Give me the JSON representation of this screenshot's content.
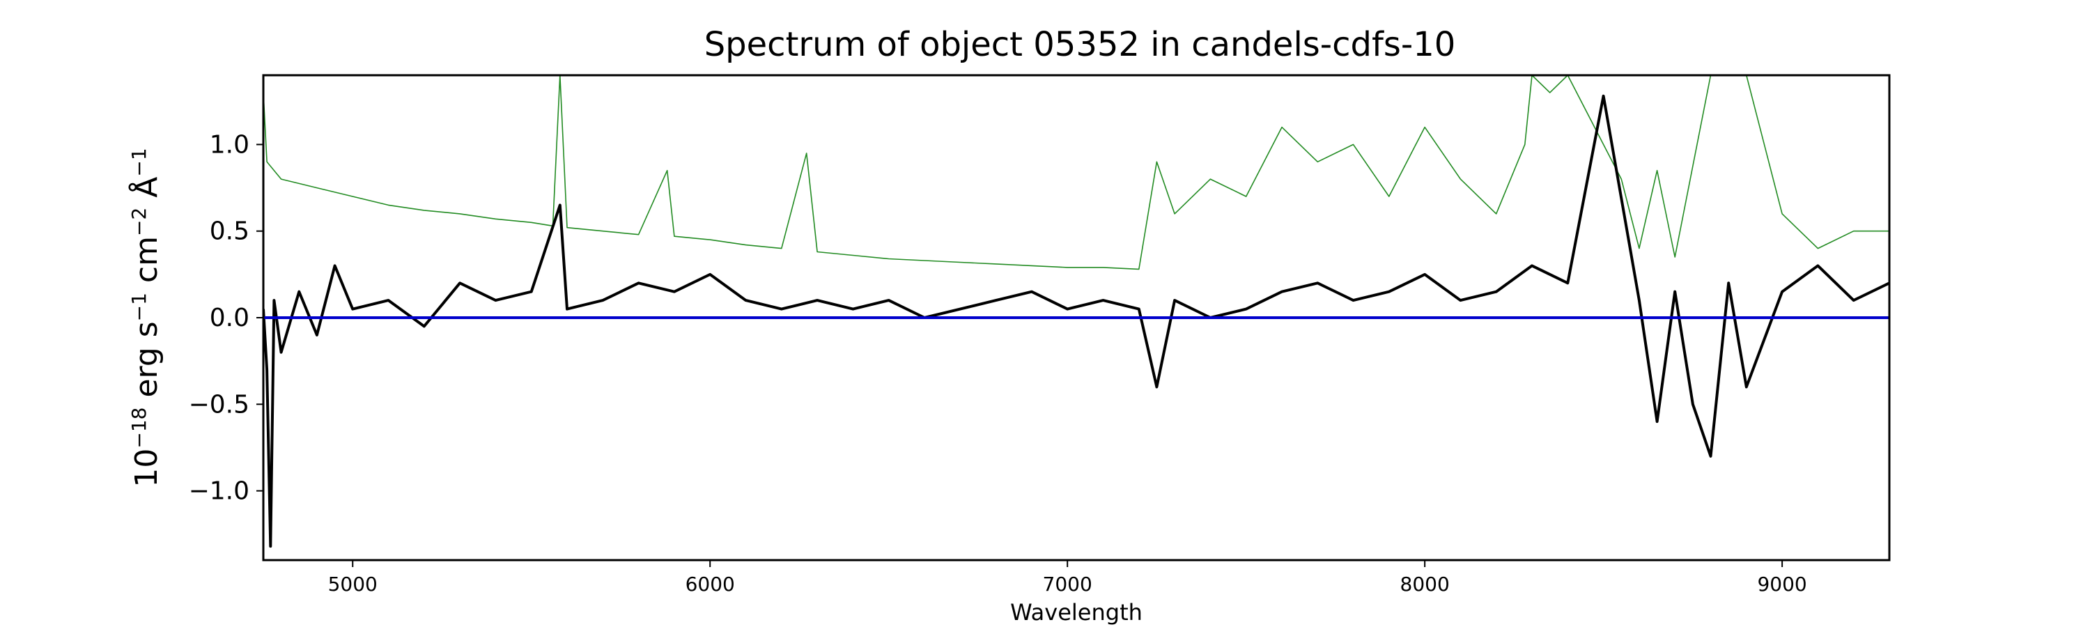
{
  "chart_data": {
    "type": "line",
    "title": "Spectrum of object 05352 in candels-cdfs-10",
    "xlabel": "Wavelength",
    "ylabel": "10^-18 erg s^-1 cm^-2 Å^-1",
    "ylabel_parts": {
      "base1": "10",
      "exp1": "−18",
      "unit1": " erg s",
      "exp2": "−1",
      "unit2": " cm",
      "exp3": "−2",
      "unit3": " Å",
      "exp4": "−1"
    },
    "xlim": [
      4750,
      9300
    ],
    "ylim": [
      -1.4,
      1.4
    ],
    "xticks": [
      5000,
      6000,
      7000,
      8000,
      9000
    ],
    "xtick_labels": [
      "5000",
      "6000",
      "7000",
      "8000",
      "9000"
    ],
    "yticks": [
      -1.0,
      -0.5,
      0.0,
      0.5,
      1.0
    ],
    "ytick_labels": [
      "−1.0",
      "−0.5",
      "0.0",
      "0.5",
      "1.0"
    ],
    "grid": false,
    "series": [
      {
        "color": "#000000",
        "kind": "flux",
        "x": [
          4750,
          4760,
          4770,
          4780,
          4800,
          4850,
          4900,
          4950,
          5000,
          5100,
          5200,
          5300,
          5400,
          5500,
          5580,
          5600,
          5700,
          5800,
          5900,
          6000,
          6100,
          6200,
          6300,
          6400,
          6500,
          6600,
          6700,
          6800,
          6900,
          7000,
          7100,
          7200,
          7250,
          7300,
          7400,
          7500,
          7600,
          7700,
          7800,
          7900,
          8000,
          8100,
          8200,
          8300,
          8400,
          8500,
          8600,
          8650,
          8700,
          8750,
          8800,
          8850,
          8900,
          9000,
          9100,
          9200,
          9300
        ],
        "y": [
          0.05,
          -0.3,
          -1.32,
          0.1,
          -0.2,
          0.15,
          -0.1,
          0.3,
          0.05,
          0.1,
          -0.05,
          0.2,
          0.1,
          0.15,
          0.65,
          0.05,
          0.1,
          0.2,
          0.15,
          0.25,
          0.1,
          0.05,
          0.1,
          0.05,
          0.1,
          0.0,
          0.05,
          0.1,
          0.15,
          0.05,
          0.1,
          0.05,
          -0.4,
          0.1,
          0.0,
          0.05,
          0.15,
          0.2,
          0.1,
          0.15,
          0.25,
          0.1,
          0.15,
          0.3,
          0.2,
          1.28,
          0.1,
          -0.6,
          0.15,
          -0.5,
          -0.8,
          0.2,
          -0.4,
          0.15,
          0.3,
          0.1,
          0.2
        ]
      },
      {
        "color": "#228b22",
        "kind": "error",
        "x": [
          4750,
          4760,
          4780,
          4800,
          4900,
          5000,
          5100,
          5200,
          5300,
          5400,
          5500,
          5560,
          5580,
          5600,
          5700,
          5800,
          5880,
          5900,
          6000,
          6100,
          6200,
          6270,
          6300,
          6400,
          6500,
          6600,
          6700,
          6800,
          6900,
          7000,
          7100,
          7200,
          7250,
          7300,
          7400,
          7500,
          7600,
          7700,
          7800,
          7900,
          8000,
          8100,
          8200,
          8280,
          8300,
          8350,
          8400,
          8450,
          8500,
          8550,
          8600,
          8650,
          8700,
          8800,
          8850,
          8900,
          9000,
          9100,
          9200,
          9300
        ],
        "y": [
          1.3,
          0.9,
          0.85,
          0.8,
          0.75,
          0.7,
          0.65,
          0.62,
          0.6,
          0.57,
          0.55,
          0.53,
          1.4,
          0.52,
          0.5,
          0.48,
          0.85,
          0.47,
          0.45,
          0.42,
          0.4,
          0.95,
          0.38,
          0.36,
          0.34,
          0.33,
          0.32,
          0.31,
          0.3,
          0.29,
          0.29,
          0.28,
          0.9,
          0.6,
          0.8,
          0.7,
          1.1,
          0.9,
          1.0,
          0.7,
          1.1,
          0.8,
          0.6,
          1.0,
          1.4,
          1.3,
          1.4,
          1.2,
          1.0,
          0.8,
          0.4,
          0.85,
          0.35,
          1.4,
          1.4,
          1.4,
          0.6,
          0.4,
          0.5,
          0.5
        ]
      },
      {
        "color": "#0000cc",
        "kind": "zero",
        "x": [
          4750,
          9300
        ],
        "y": [
          0.0,
          0.0
        ]
      }
    ]
  }
}
